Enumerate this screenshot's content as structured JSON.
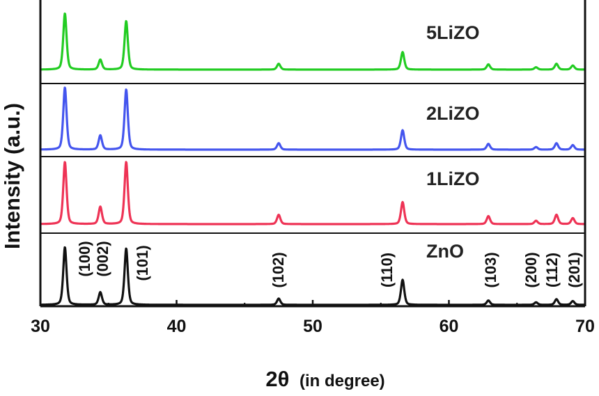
{
  "chart_data": {
    "type": "line",
    "xlabel_main": "2θ",
    "xlabel_paren": "(in degree)",
    "ylabel": "Intensity (a.u.)",
    "xlim": [
      30,
      70
    ],
    "xticks": [
      30,
      40,
      50,
      60,
      70
    ],
    "grid": false,
    "series": [
      {
        "name": "5LiZO",
        "color": "#22cc22",
        "peaks": [
          {
            "x": 31.8,
            "height": 0.96
          },
          {
            "x": 34.4,
            "height": 0.17
          },
          {
            "x": 36.3,
            "height": 0.83
          },
          {
            "x": 47.5,
            "height": 0.1
          },
          {
            "x": 56.6,
            "height": 0.3
          },
          {
            "x": 62.9,
            "height": 0.09
          },
          {
            "x": 66.4,
            "height": 0.04
          },
          {
            "x": 67.9,
            "height": 0.1
          },
          {
            "x": 69.1,
            "height": 0.07
          }
        ]
      },
      {
        "name": "2LiZO",
        "color": "#4455ee",
        "peaks": [
          {
            "x": 31.8,
            "height": 0.96
          },
          {
            "x": 34.4,
            "height": 0.22
          },
          {
            "x": 36.3,
            "height": 0.93
          },
          {
            "x": 47.5,
            "height": 0.1
          },
          {
            "x": 56.6,
            "height": 0.3
          },
          {
            "x": 62.9,
            "height": 0.09
          },
          {
            "x": 66.4,
            "height": 0.04
          },
          {
            "x": 67.9,
            "height": 0.1
          },
          {
            "x": 69.1,
            "height": 0.07
          }
        ]
      },
      {
        "name": "1LiZO",
        "color": "#ee3355",
        "peaks": [
          {
            "x": 31.8,
            "height": 0.93
          },
          {
            "x": 34.4,
            "height": 0.26
          },
          {
            "x": 36.3,
            "height": 0.93
          },
          {
            "x": 47.5,
            "height": 0.14
          },
          {
            "x": 56.6,
            "height": 0.33
          },
          {
            "x": 62.9,
            "height": 0.12
          },
          {
            "x": 66.4,
            "height": 0.05
          },
          {
            "x": 67.9,
            "height": 0.14
          },
          {
            "x": 69.1,
            "height": 0.09
          }
        ]
      },
      {
        "name": "ZnO",
        "color": "#111111",
        "peaks": [
          {
            "x": 31.8,
            "height": 0.92
          },
          {
            "x": 34.4,
            "height": 0.2
          },
          {
            "x": 36.3,
            "height": 0.9
          },
          {
            "x": 47.5,
            "height": 0.1
          },
          {
            "x": 56.6,
            "height": 0.4
          },
          {
            "x": 62.9,
            "height": 0.07
          },
          {
            "x": 66.4,
            "height": 0.04
          },
          {
            "x": 67.9,
            "height": 0.09
          },
          {
            "x": 69.1,
            "height": 0.06
          }
        ]
      }
    ],
    "peak_labels": [
      {
        "label": "(100)",
        "x": 31.8
      },
      {
        "label": "(002)",
        "x": 34.4
      },
      {
        "label": "(101)",
        "x": 36.3
      },
      {
        "label": "(102)",
        "x": 47.5
      },
      {
        "label": "(110)",
        "x": 56.6
      },
      {
        "label": "(103)",
        "x": 62.9
      },
      {
        "label": "(200)",
        "x": 66.4
      },
      {
        "label": "(112)",
        "x": 67.9
      },
      {
        "label": "(201)",
        "x": 69.1
      }
    ]
  }
}
